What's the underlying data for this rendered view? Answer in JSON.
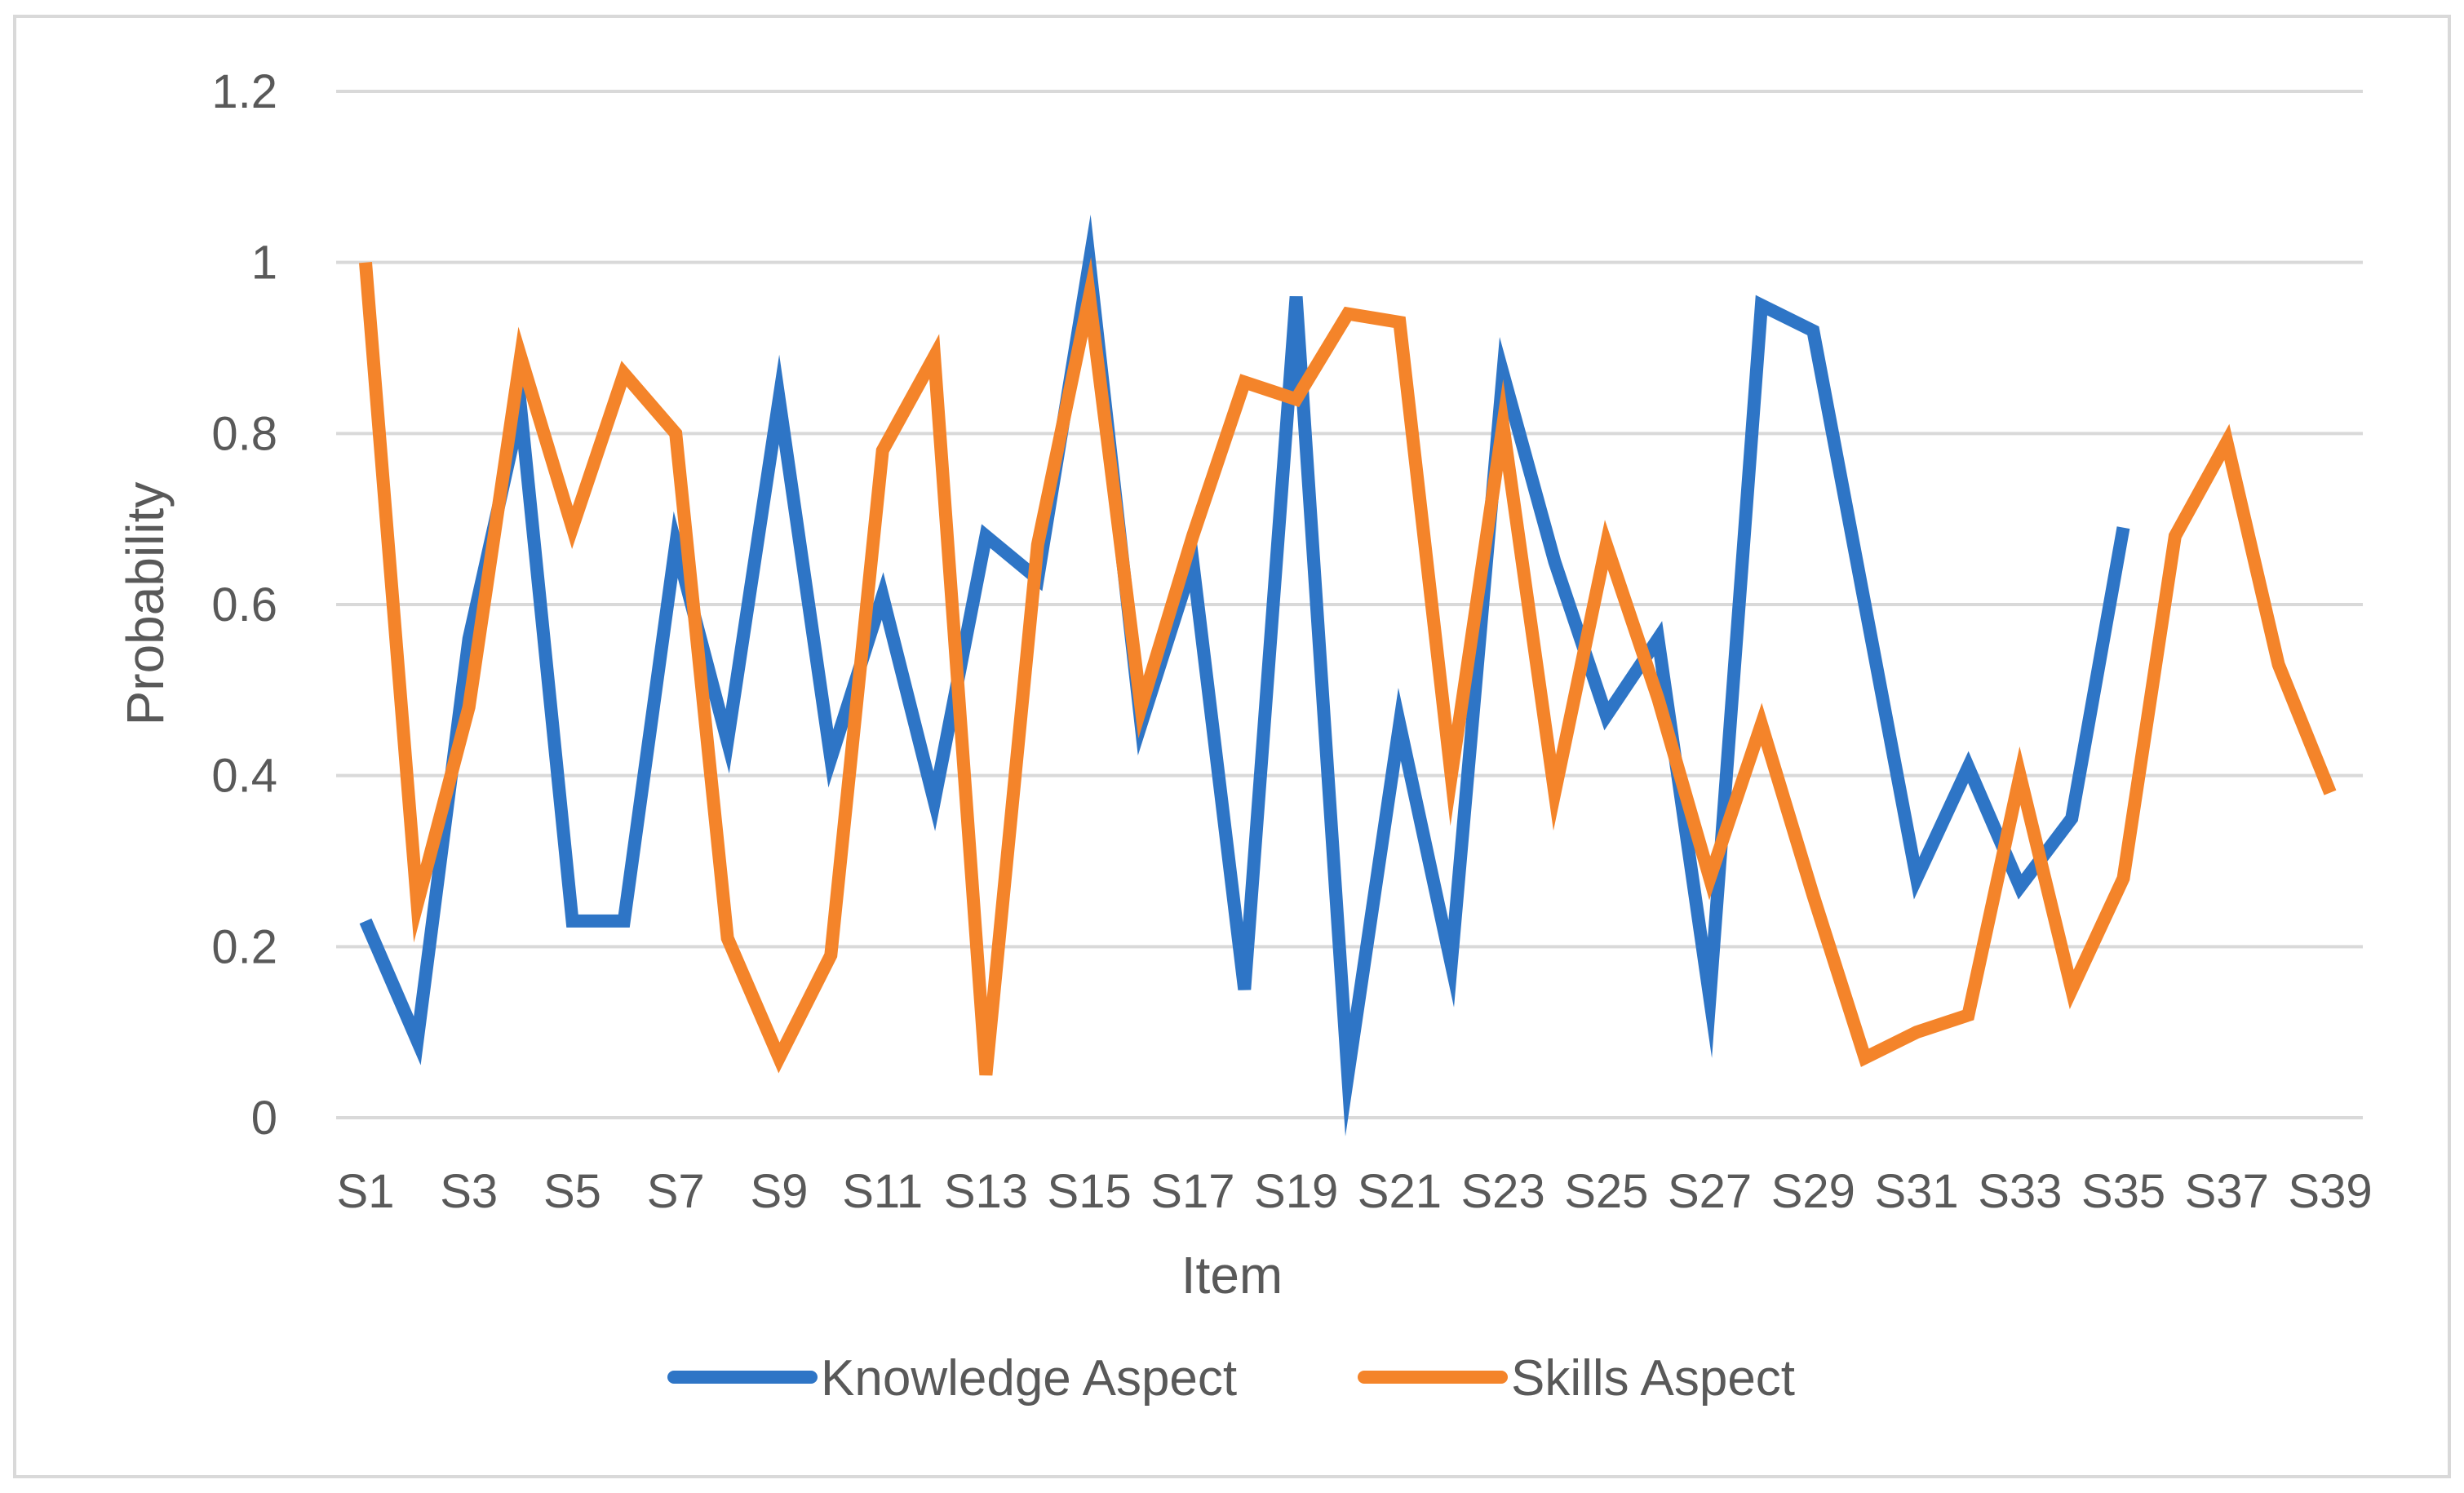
{
  "chart_data": {
    "type": "line",
    "xlabel": "Item",
    "ylabel": "Probability",
    "categories": [
      "S1",
      "S2",
      "S3",
      "S4",
      "S5",
      "S6",
      "S7",
      "S8",
      "S9",
      "S10",
      "S11",
      "S12",
      "S13",
      "S14",
      "S15",
      "S16",
      "S17",
      "S18",
      "S19",
      "S20",
      "S21",
      "S22",
      "S23",
      "S24",
      "S25",
      "S26",
      "S27",
      "S28",
      "S29",
      "S30",
      "S31",
      "S32",
      "S33",
      "S34",
      "S35",
      "S36",
      "S37",
      "S38",
      "S39"
    ],
    "x_tick_labels": [
      "S1",
      "S3",
      "S5",
      "S7",
      "S9",
      "S11",
      "S13",
      "S15",
      "S17",
      "S19",
      "S21",
      "S23",
      "S25",
      "S27",
      "S29",
      "S31",
      "S33",
      "S35",
      "S37",
      "S39"
    ],
    "y_tick_labels": [
      "0",
      "0.2",
      "0.4",
      "0.6",
      "0.8",
      "1",
      "1.2"
    ],
    "ylim": [
      0,
      1.2
    ],
    "yticks": [
      0,
      0.2,
      0.4,
      0.6,
      0.8,
      1.0,
      1.2
    ],
    "grid": true,
    "legend_position": "bottom",
    "series": [
      {
        "name": "Knowledge Aspect",
        "color": "#2e75c6",
        "values": [
          0.23,
          0.09,
          0.56,
          0.83,
          0.23,
          0.23,
          0.67,
          0.44,
          0.84,
          0.42,
          0.61,
          0.37,
          0.68,
          0.63,
          1.0,
          0.46,
          0.65,
          0.15,
          0.96,
          0.05,
          0.46,
          0.18,
          0.87,
          0.65,
          0.47,
          0.56,
          0.14,
          0.95,
          0.92,
          0.6,
          0.28,
          0.41,
          0.27,
          0.35,
          0.69,
          null,
          null,
          null,
          null
        ]
      },
      {
        "name": "Skills Aspect",
        "color": "#f4842a",
        "values": [
          1.0,
          0.25,
          0.48,
          0.89,
          0.69,
          0.87,
          0.8,
          0.21,
          0.07,
          0.19,
          0.78,
          0.89,
          0.05,
          0.67,
          0.96,
          0.48,
          0.68,
          0.86,
          0.84,
          0.94,
          0.93,
          0.4,
          0.81,
          0.38,
          0.67,
          0.49,
          0.28,
          0.46,
          0.26,
          0.07,
          0.1,
          0.12,
          0.4,
          0.15,
          0.28,
          0.68,
          0.79,
          0.53,
          0.38
        ]
      }
    ]
  }
}
